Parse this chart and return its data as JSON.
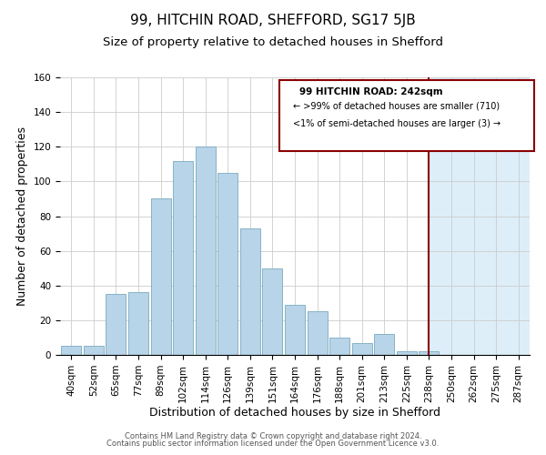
{
  "title": "99, HITCHIN ROAD, SHEFFORD, SG17 5JB",
  "subtitle": "Size of property relative to detached houses in Shefford",
  "xlabel": "Distribution of detached houses by size in Shefford",
  "ylabel": "Number of detached properties",
  "bar_labels": [
    "40sqm",
    "52sqm",
    "65sqm",
    "77sqm",
    "89sqm",
    "102sqm",
    "114sqm",
    "126sqm",
    "139sqm",
    "151sqm",
    "164sqm",
    "176sqm",
    "188sqm",
    "201sqm",
    "213sqm",
    "225sqm",
    "238sqm",
    "250sqm",
    "262sqm",
    "275sqm",
    "287sqm"
  ],
  "bar_values": [
    5,
    5,
    35,
    36,
    90,
    112,
    120,
    105,
    73,
    50,
    29,
    25,
    10,
    7,
    12,
    2,
    2,
    0,
    0,
    0,
    0
  ],
  "bar_color": "#b8d4e8",
  "bar_edge_color": "#7aaabf",
  "highlight_color": "#ddeef8",
  "vline_x": 16,
  "vline_color": "#8b0000",
  "ylim": [
    0,
    160
  ],
  "yticks": [
    0,
    20,
    40,
    60,
    80,
    100,
    120,
    140,
    160
  ],
  "legend_title": "99 HITCHIN ROAD: 242sqm",
  "legend_line1": "← >99% of detached houses are smaller (710)",
  "legend_line2": "<1% of semi-detached houses are larger (3) →",
  "footer_line1": "Contains HM Land Registry data © Crown copyright and database right 2024.",
  "footer_line2": "Contains public sector information licensed under the Open Government Licence v3.0.",
  "title_fontsize": 11,
  "subtitle_fontsize": 9.5,
  "axis_label_fontsize": 9,
  "tick_fontsize": 7.5
}
